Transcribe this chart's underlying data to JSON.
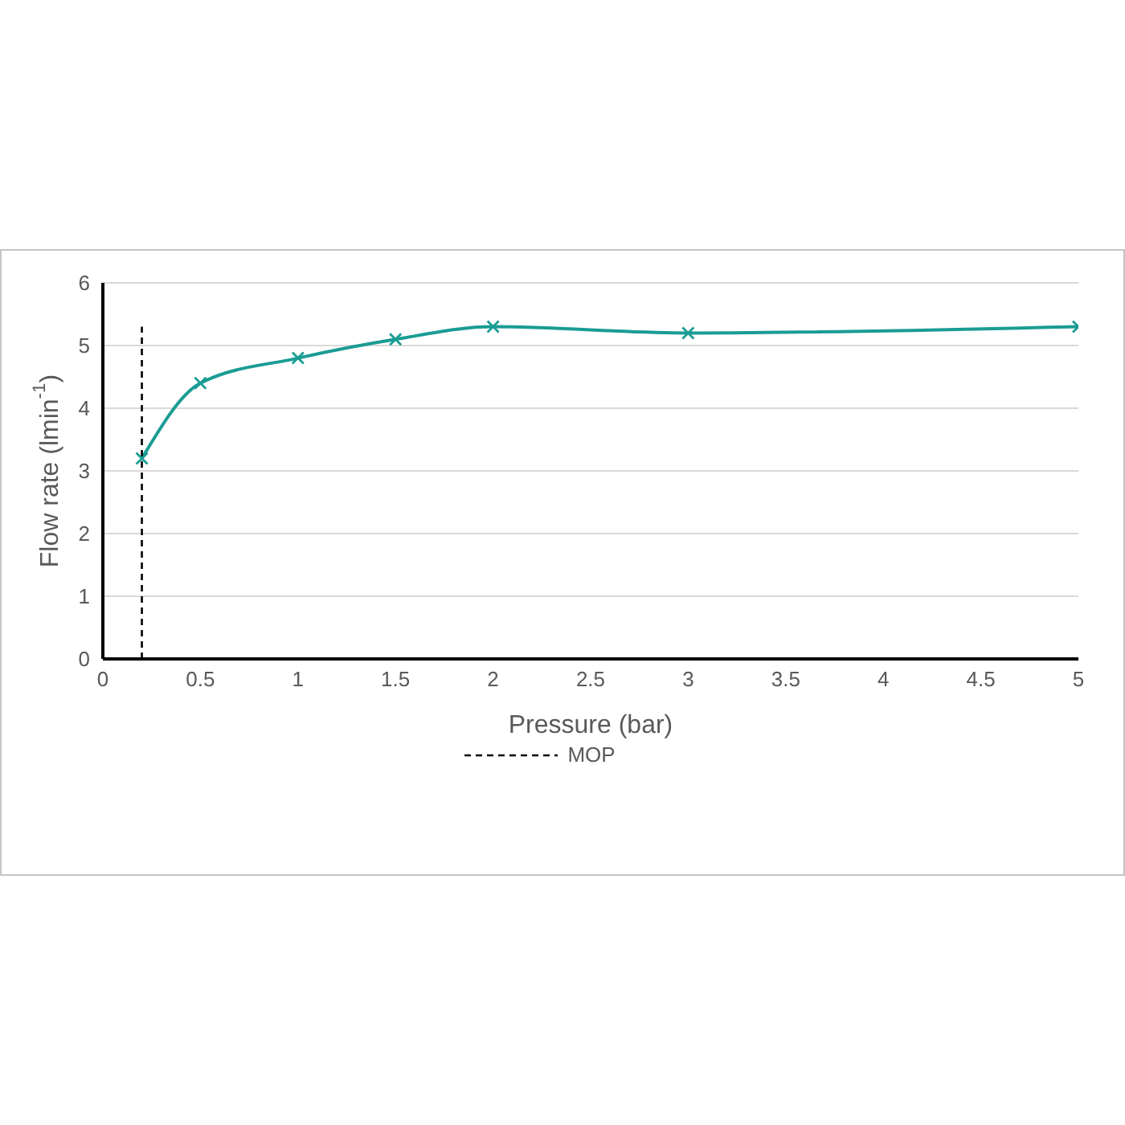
{
  "chart_data": {
    "type": "line",
    "xlabel": "Pressure (bar)",
    "ylabel": "Flow rate (lmin$^{-1}$)",
    "x": [
      0.2,
      0.5,
      1,
      1.5,
      2,
      3,
      5
    ],
    "series": [
      {
        "color": "#1a9c94",
        "values": [
          3.2,
          4.4,
          4.8,
          5.1,
          5.3,
          5.2,
          5.3
        ]
      },
      {
        "name": "MOP",
        "type": "line",
        "x": [
          0.2,
          0.2
        ],
        "values": [
          0,
          5.3
        ],
        "color": "#000000",
        "line_style": "dashed",
        "marker": "none"
      }
    ],
    "xlim": [
      0,
      5
    ],
    "xticks": [
      0,
      0.5,
      1,
      1.5,
      2,
      2.5,
      3,
      3.5,
      4,
      4.5,
      5
    ],
    "ylim": [
      0,
      6
    ],
    "yticks": [
      0,
      1,
      2,
      3,
      4,
      5,
      6
    ],
    "grid": "y",
    "legend": "bottom",
    "marker": "cross"
  }
}
